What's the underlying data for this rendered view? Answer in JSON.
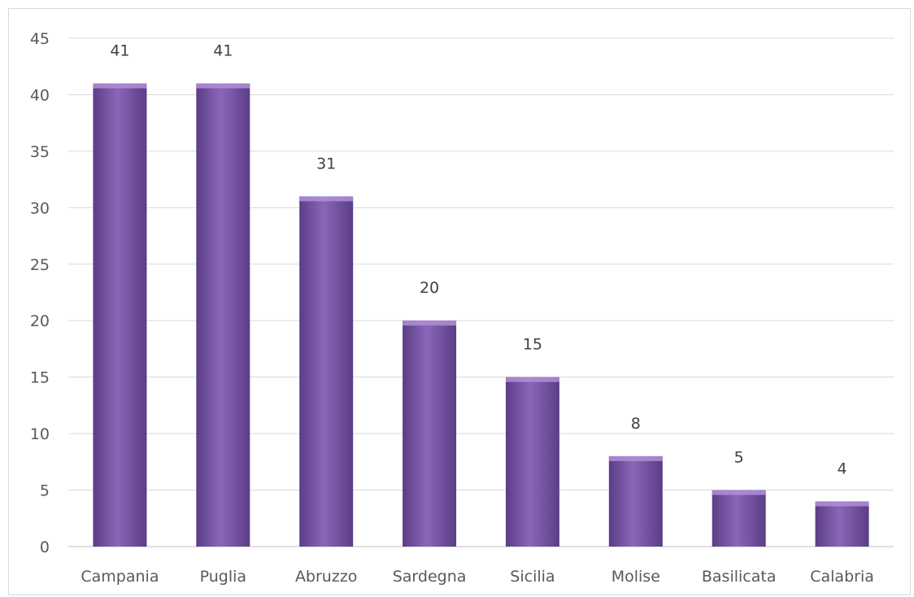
{
  "chart_data": {
    "type": "bar",
    "title": "",
    "xlabel": "",
    "ylabel": "",
    "categories": [
      "Campania",
      "Puglia",
      "Abruzzo",
      "Sardegna",
      "Sicilia",
      "Molise",
      "Basilicata",
      "Calabria"
    ],
    "values": [
      41,
      41,
      31,
      20,
      15,
      8,
      5,
      4
    ],
    "data_labels": [
      "41",
      "41",
      "31",
      "20",
      "15",
      "8",
      "5",
      "4"
    ],
    "yticks": [
      "0",
      "5",
      "10",
      "15",
      "20",
      "25",
      "30",
      "35",
      "40",
      "45"
    ],
    "ylim": [
      0,
      45
    ],
    "grid": true,
    "legend": "none",
    "colors": {
      "bar_light": "#8a67b8",
      "bar_dark": "#5b3d86",
      "bar_top": "#b08fd8",
      "grid": "#d9d9d9",
      "axis": "#bfbfbf"
    }
  }
}
